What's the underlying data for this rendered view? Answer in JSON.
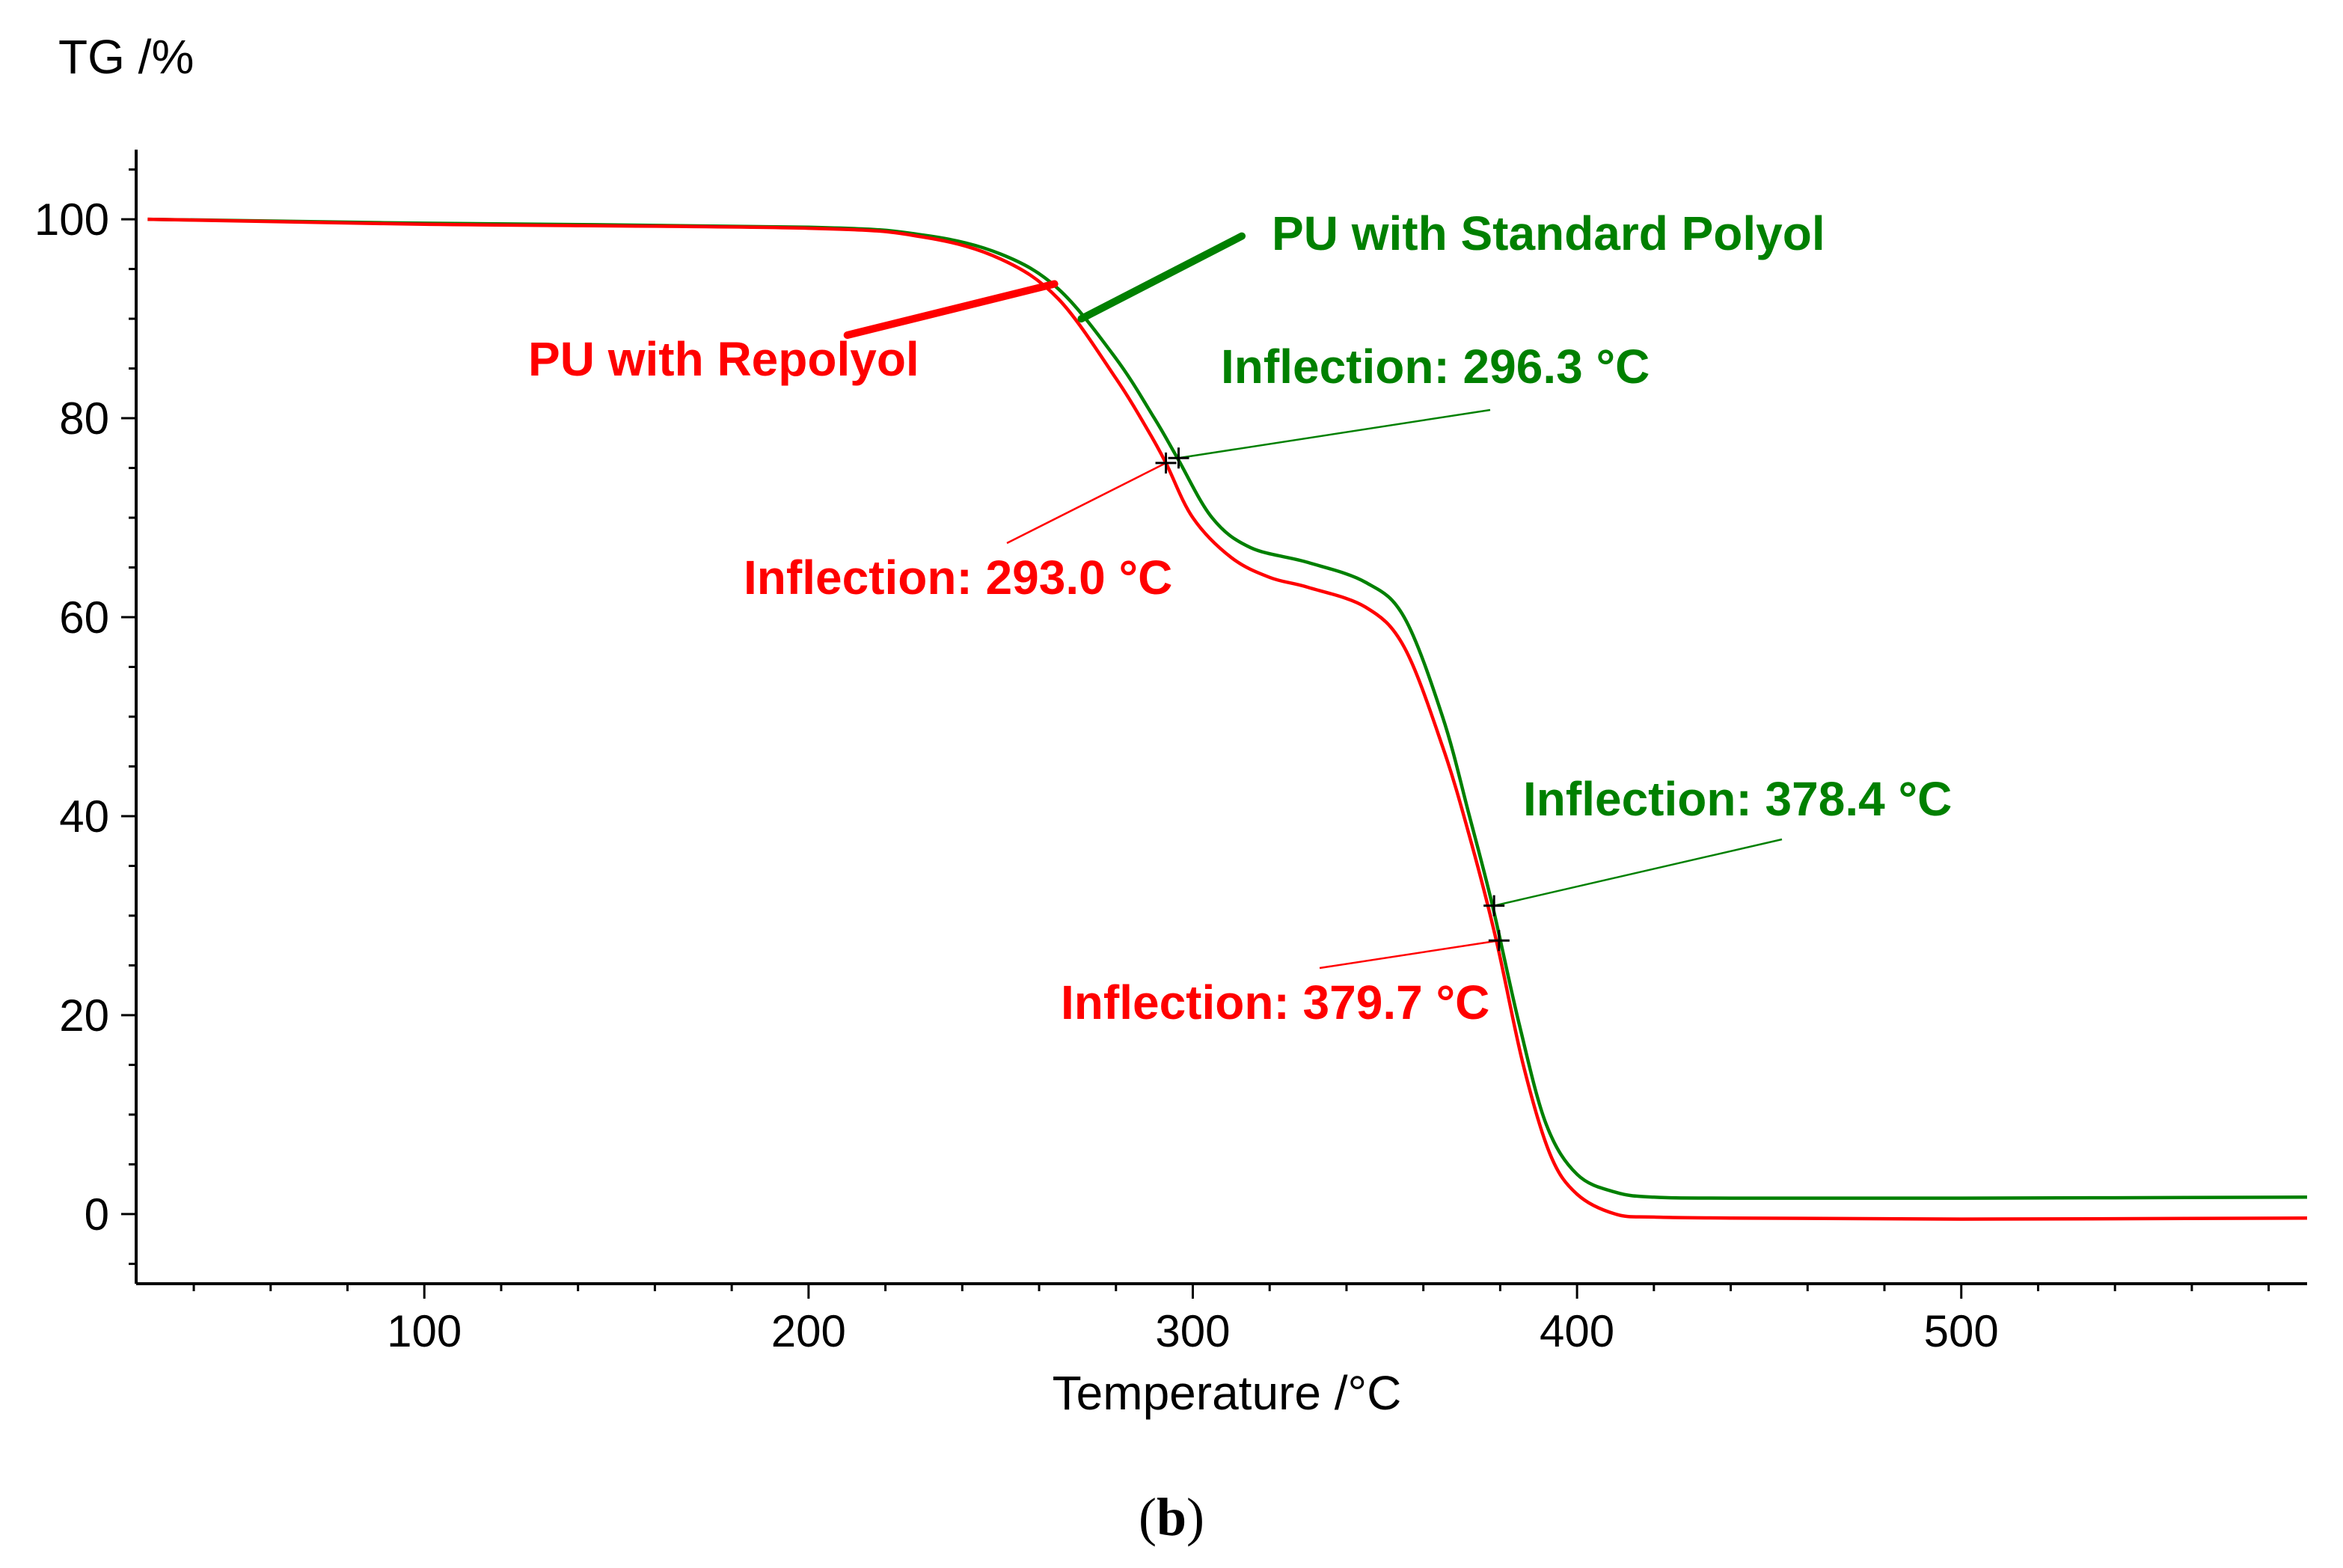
{
  "chart_data": {
    "type": "line",
    "ylabel": "TG /%",
    "xlabel": "Temperature /°C",
    "xlim": [
      25,
      590
    ],
    "ylim": [
      -7,
      107
    ],
    "x_ticks": [
      100,
      200,
      300,
      400,
      500
    ],
    "y_ticks": [
      0,
      20,
      40,
      60,
      80,
      100
    ],
    "x_minor_step": 20,
    "y_minor_step": 5,
    "panel_label": {
      "open": "(",
      "letter": "b",
      "close": ")"
    },
    "colors": {
      "standard": "#008000",
      "repolyol": "#ff0000",
      "marker": "#000000"
    },
    "series": [
      {
        "name": "PU with Standard Polyol",
        "color": "#008000",
        "x": [
          28,
          100,
          200,
          230,
          250,
          265,
          280,
          290,
          296,
          305,
          315,
          330,
          345,
          355,
          365,
          372,
          378,
          385,
          392,
          400,
          410,
          420,
          440,
          500,
          590
        ],
        "y": [
          100,
          99.6,
          99.2,
          98.4,
          96.5,
          93,
          86,
          80,
          76,
          70,
          67,
          65.5,
          63.5,
          60,
          50,
          40,
          31,
          19,
          9,
          4,
          2.2,
          1.7,
          1.6,
          1.6,
          1.7
        ]
      },
      {
        "name": "PU with Repolyol",
        "color": "#ff0000",
        "x": [
          28,
          100,
          200,
          230,
          250,
          265,
          280,
          288,
          293,
          300,
          310,
          320,
          330,
          345,
          355,
          365,
          372,
          379,
          386,
          393,
          400,
          410,
          420,
          440,
          500,
          590
        ],
        "y": [
          100,
          99.5,
          99.1,
          98.2,
          96,
          92,
          84,
          79,
          75.5,
          70,
          66,
          64,
          63,
          61,
          57,
          47,
          38,
          27.5,
          15,
          6,
          2,
          0,
          -0.3,
          -0.4,
          -0.5,
          -0.4
        ]
      }
    ],
    "annotations": [
      {
        "id": "legend-standard",
        "text": "PU with Standard Polyol",
        "color": "#008000",
        "pointer": {
          "x": 271,
          "y": 90
        }
      },
      {
        "id": "legend-repolyol",
        "text": "PU with Repolyol",
        "color": "#ff0000",
        "pointer": {
          "x": 264,
          "y": 93.5
        }
      },
      {
        "id": "infl-standard-1",
        "text": "Inflection: 296.3 °C",
        "color": "#008000",
        "marker": {
          "x": 296.3,
          "y": 76
        }
      },
      {
        "id": "infl-repolyol-1",
        "text": "Inflection: 293.0 °C",
        "color": "#ff0000",
        "marker": {
          "x": 293.0,
          "y": 75.5
        }
      },
      {
        "id": "infl-standard-2",
        "text": "Inflection: 378.4 °C",
        "color": "#008000",
        "marker": {
          "x": 378.4,
          "y": 31
        }
      },
      {
        "id": "infl-repolyol-2",
        "text": "Inflection: 379.7 °C",
        "color": "#ff0000",
        "marker": {
          "x": 379.7,
          "y": 27.5
        }
      }
    ]
  }
}
